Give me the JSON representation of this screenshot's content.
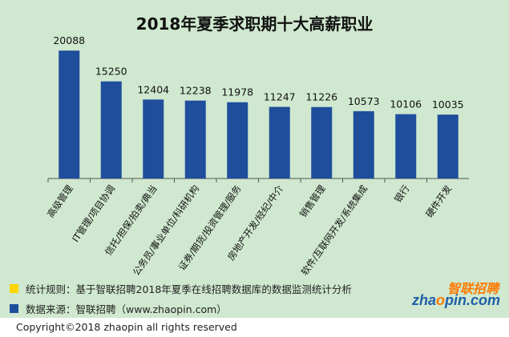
{
  "chart_data": {
    "type": "bar",
    "title": "2018年夏季求职期十大高薪职业",
    "categories": [
      "高级管理",
      "IT管理/项目协调",
      "信托/担保/拍卖/典当",
      "公务员/事业单位/科研机构",
      "证券/期货/投资管理/服务",
      "房地产开发/经纪/中介",
      "销售管理",
      "软件/互联网开发/系统集成",
      "银行",
      "硬件开发"
    ],
    "values": [
      20088,
      15250,
      12404,
      12238,
      11978,
      11247,
      11226,
      10573,
      10106,
      10035
    ],
    "data_labels": [
      "20088",
      "15250",
      "12404",
      "12238",
      "11978",
      "11247",
      "11226",
      "10573",
      "10106",
      "10035"
    ],
    "ylim": [
      0,
      22000
    ],
    "grid": false,
    "bar_color": "#1f4e9c"
  },
  "legend": {
    "row1": {
      "text": "统计规则：基于智联招聘2018年夏季在线招聘数据库的数据监测统计分析",
      "color": "#ffd400"
    },
    "row2": {
      "text": "数据来源：智联招聘（www.zhaopin.com）",
      "color": "#1f4e9c"
    }
  },
  "logo": {
    "cn": "智联招聘",
    "en_a": "zha",
    "en_o": "o",
    "en_b": "pin",
    "en_c": ".com"
  },
  "copyright": "Copyright©2018 zhaopin all rights reserved",
  "colors": {
    "background": "#cfe8cf",
    "axis": "#555555"
  }
}
